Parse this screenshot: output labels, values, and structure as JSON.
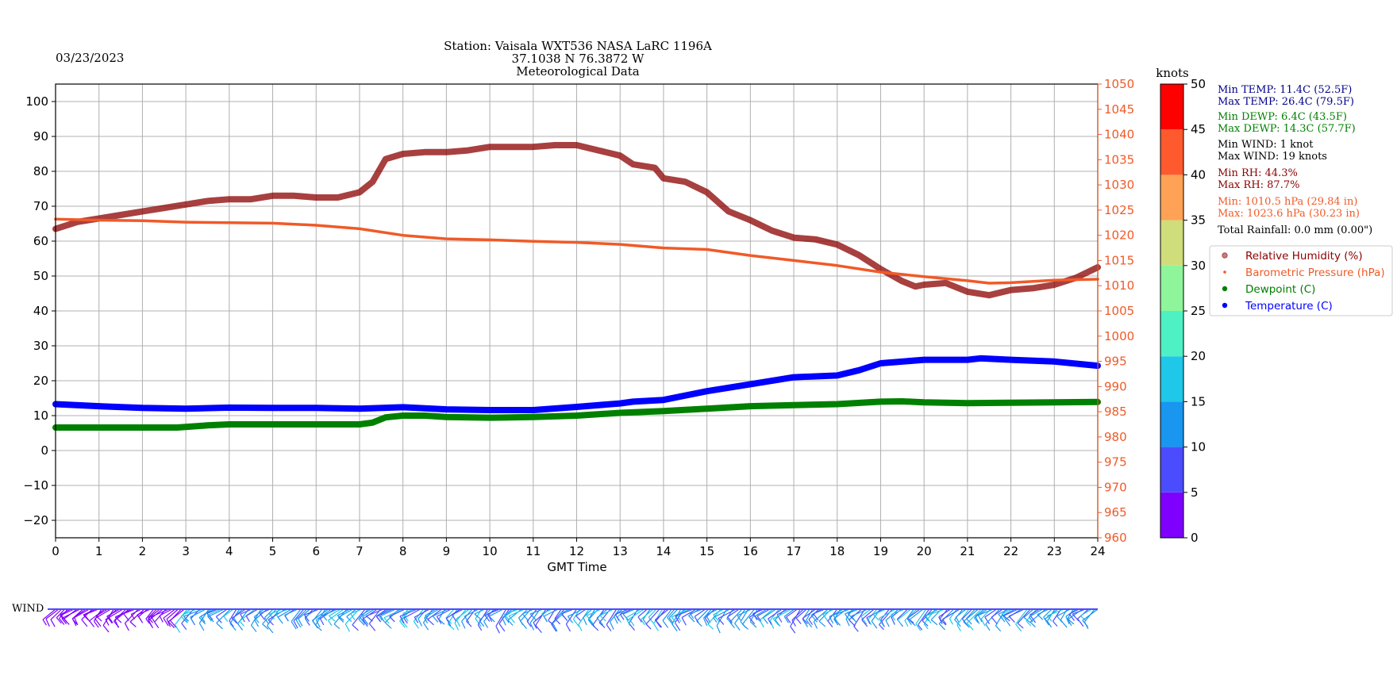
{
  "header": {
    "date": "03/23/2023",
    "title_line1": "Station:  Vaisala WXT536  NASA LaRC 1196A",
    "title_line2": "37.1038 N 76.3872 W",
    "title_line3": "Meteorological Data"
  },
  "stats": {
    "min_temp": "Min TEMP: 11.4C (52.5F)",
    "max_temp": "Max TEMP: 26.4C (79.5F)",
    "min_dewp": "Min DEWP: 6.4C (43.5F)",
    "max_dewp": "Max DEWP: 14.3C (57.7F)",
    "min_wind": "Min WIND: 1 knot",
    "max_wind": "Max WIND: 19 knots",
    "min_rh": "Min RH: 44.3%",
    "max_rh": "Max RH: 87.7%",
    "min_press": "Min: 1010.5 hPa (29.84 in)",
    "max_press": "Max: 1023.6 hPa (30.23 in)",
    "rainfall": "Total Rainfall: 0.0 mm (0.00\")"
  },
  "colors": {
    "rh": "#8b0000",
    "pressure": "#f05a28",
    "dewpoint": "#008000",
    "temperature": "#0000ff",
    "header_text": "#006400",
    "temp_stats": "#00008b",
    "wind_stats": "#000000"
  },
  "wind_label": "WIND",
  "colorbar": {
    "label": "knots",
    "ticks": [
      0,
      5,
      10,
      15,
      20,
      25,
      30,
      35,
      40,
      45,
      50
    ],
    "colors": [
      "#7f00ff",
      "#4c4cff",
      "#1996f0",
      "#1fc8e8",
      "#4ef1c4",
      "#8ef59a",
      "#cfdd7a",
      "#ffa256",
      "#ff5a2e",
      "#ff0000"
    ]
  },
  "chart_data": {
    "type": "line",
    "xlabel": "GMT Time",
    "xlim": [
      0,
      24
    ],
    "x_ticks": [
      0,
      1,
      2,
      3,
      4,
      5,
      6,
      7,
      8,
      9,
      10,
      11,
      12,
      13,
      14,
      15,
      16,
      17,
      18,
      19,
      20,
      21,
      22,
      23,
      24
    ],
    "ylim_left": [
      -25,
      105
    ],
    "y_ticks_left": [
      -20,
      -10,
      0,
      10,
      20,
      30,
      40,
      50,
      60,
      70,
      80,
      90,
      100
    ],
    "ylim_right": [
      960,
      1050
    ],
    "y_ticks_right": [
      960,
      965,
      970,
      975,
      980,
      985,
      990,
      995,
      1000,
      1005,
      1010,
      1015,
      1020,
      1025,
      1030,
      1035,
      1040,
      1045,
      1050
    ],
    "grid": true,
    "legend_position": "right",
    "series": [
      {
        "name": "Relative Humidity (%)",
        "axis": "left",
        "x": [
          0,
          0.5,
          1,
          1.5,
          2,
          2.5,
          3,
          3.5,
          4,
          4.5,
          5,
          5.5,
          6,
          6.5,
          7,
          7.3,
          7.6,
          8,
          8.5,
          9,
          9.5,
          10,
          10.5,
          11,
          11.5,
          12,
          12.5,
          13,
          13.3,
          13.8,
          14,
          14.5,
          15,
          15.5,
          16,
          16.5,
          17,
          17.5,
          18,
          18.5,
          19,
          19.5,
          19.8,
          20,
          20.5,
          21,
          21.5,
          22,
          22.5,
          23,
          23.5,
          24
        ],
        "y": [
          63.5,
          65.5,
          66.5,
          67.5,
          68.5,
          69.5,
          70.5,
          71.5,
          72,
          72,
          73,
          73,
          72.5,
          72.5,
          74,
          77,
          83.5,
          85,
          85.5,
          85.5,
          86,
          87,
          87,
          87,
          87.5,
          87.5,
          86,
          84.5,
          82,
          81,
          78,
          77,
          74,
          68.5,
          66,
          63,
          61,
          60.5,
          59,
          56,
          52,
          48.5,
          47,
          47.5,
          48,
          45.5,
          44.5,
          46,
          46.5,
          47.5,
          49.5,
          52.5
        ]
      },
      {
        "name": "Barometric Pressure (hPa)",
        "axis": "right",
        "x": [
          0,
          1,
          2,
          3,
          4,
          5,
          6,
          7,
          8,
          9,
          10,
          11,
          12,
          13,
          14,
          15,
          16,
          17,
          18,
          19,
          20,
          21,
          21.5,
          22,
          23,
          24
        ],
        "y": [
          1023.2,
          1023.0,
          1022.9,
          1022.6,
          1022.5,
          1022.4,
          1022.0,
          1021.3,
          1020.0,
          1019.3,
          1019.1,
          1018.8,
          1018.6,
          1018.2,
          1017.5,
          1017.2,
          1016.0,
          1015.0,
          1014.0,
          1012.7,
          1011.8,
          1011.0,
          1010.5,
          1010.6,
          1011.1,
          1011.3
        ]
      },
      {
        "name": "Dewpoint (C)",
        "axis": "left",
        "x": [
          0,
          1,
          2,
          2.8,
          3.5,
          4,
          5,
          6,
          7,
          7.3,
          7.6,
          8,
          8.5,
          9,
          10,
          11,
          12,
          13,
          14,
          15,
          16,
          17,
          18,
          19,
          19.5,
          20,
          21,
          22,
          23,
          24
        ],
        "y": [
          6.6,
          6.6,
          6.6,
          6.6,
          7.2,
          7.5,
          7.5,
          7.5,
          7.5,
          8,
          9.5,
          10,
          10,
          9.6,
          9.4,
          9.6,
          10,
          10.8,
          11.3,
          12,
          12.7,
          13,
          13.3,
          14,
          14.1,
          13.8,
          13.6,
          13.7,
          13.8,
          13.9
        ]
      },
      {
        "name": "Temperature (C)",
        "axis": "left",
        "x": [
          0,
          1,
          2,
          3,
          4,
          5,
          6,
          7,
          8,
          9,
          10,
          11,
          12,
          13,
          13.3,
          14,
          15,
          16,
          17,
          18,
          18.5,
          19,
          20,
          21,
          21.3,
          22,
          23,
          24
        ],
        "y": [
          13.3,
          12.7,
          12.2,
          12,
          12.3,
          12.2,
          12.2,
          12,
          12.4,
          11.8,
          11.6,
          11.6,
          12.5,
          13.5,
          14,
          14.5,
          17,
          19,
          21,
          21.5,
          23,
          25,
          26,
          26,
          26.4,
          26,
          25.5,
          24.3
        ]
      }
    ]
  }
}
